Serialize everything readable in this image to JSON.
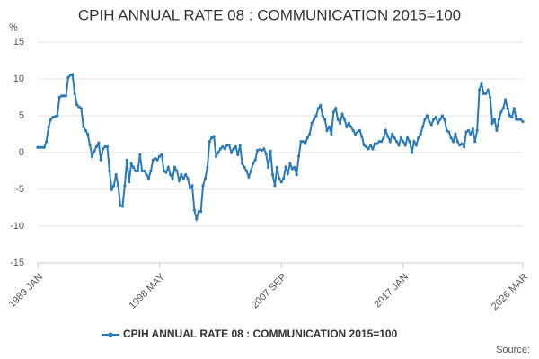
{
  "chart_data": {
    "type": "line",
    "title": "CPIH ANNUAL RATE 08 : COMMUNICATION 2015=100",
    "y_label": "%",
    "source": "Source:",
    "categories": [
      "1989 JAN",
      null,
      null,
      null,
      null,
      null,
      null,
      null,
      null,
      null,
      null,
      null,
      null,
      null,
      null,
      null,
      null,
      null,
      null,
      null,
      null,
      null,
      null,
      null,
      null,
      null,
      null,
      null,
      null,
      null,
      null,
      null,
      null,
      null,
      null,
      null,
      null,
      null,
      null,
      null,
      null,
      null,
      null,
      null,
      null,
      null,
      null,
      null,
      null,
      null,
      null,
      null,
      null,
      null,
      null,
      null,
      "1998 MAY",
      null,
      null,
      null,
      null,
      null,
      null,
      null,
      null,
      null,
      null,
      null,
      null,
      null,
      null,
      null,
      null,
      null,
      null,
      null,
      null,
      null,
      null,
      null,
      null,
      null,
      null,
      null,
      null,
      null,
      null,
      null,
      null,
      null,
      null,
      null,
      null,
      null,
      null,
      null,
      null,
      null,
      null,
      null,
      null,
      null,
      null,
      null,
      null,
      null,
      null,
      null,
      null,
      null,
      null,
      null,
      "2007 SEP",
      null,
      null,
      null,
      null,
      null,
      null,
      null,
      null,
      null,
      null,
      null,
      null,
      null,
      null,
      null,
      null,
      null,
      null,
      null,
      null,
      null,
      null,
      null,
      null,
      null,
      null,
      null,
      null,
      null,
      null,
      null,
      null,
      null,
      null,
      null,
      null,
      null,
      null,
      null,
      null,
      null,
      null,
      null,
      null,
      null,
      null,
      null,
      null,
      null,
      null,
      null,
      null,
      null,
      null,
      null,
      "2017 JAN",
      null,
      null,
      null,
      null,
      null,
      null,
      null,
      null,
      null,
      null,
      null,
      null,
      null,
      null,
      null,
      null,
      null,
      null,
      null,
      null,
      null,
      null,
      null,
      null,
      null,
      null,
      null,
      null,
      null,
      null,
      null,
      null,
      null,
      null,
      null,
      null,
      null,
      null,
      null,
      null,
      null,
      null,
      null,
      null,
      null,
      null,
      null,
      null,
      null,
      null,
      null,
      null,
      null,
      null,
      "2026 MAR"
    ],
    "series": [
      {
        "name": "CPIH ANNUAL RATE 08 : COMMUNICATION 2015=100",
        "color": "#2a7ab9",
        "values": [
          0.7,
          0.7,
          0.7,
          0.7,
          1.5,
          3.5,
          4.5,
          4.8,
          4.9,
          5.0,
          7.5,
          7.7,
          7.7,
          7.7,
          10.2,
          10.5,
          10.6,
          8.0,
          6.5,
          6.2,
          6.0,
          3.5,
          3.0,
          2.5,
          1.0,
          -0.5,
          0.2,
          0.8,
          1.3,
          -1.0,
          0.5,
          0.8,
          0.8,
          -2.5,
          -5.0,
          -4.5,
          -3.0,
          -4.5,
          -7.2,
          -7.3,
          -4.5,
          -1.0,
          -4.0,
          -1.5,
          -2.0,
          -2.5,
          -2.5,
          -0.3,
          -2.5,
          -2.5,
          -3.0,
          -3.5,
          -2.5,
          -1.0,
          -0.8,
          -1.0,
          -0.5,
          -0.3,
          -2.5,
          -2.7,
          -2.0,
          -3.0,
          -3.5,
          -2.0,
          -2.5,
          -3.8,
          -3.0,
          -3.5,
          -3.0,
          -3.5,
          -4.8,
          -4.5,
          -7.8,
          -9.0,
          -8.0,
          -8.0,
          -4.5,
          -3.5,
          -2.0,
          1.5,
          2.0,
          2.2,
          -0.5,
          0.0,
          0.5,
          0.8,
          0.5,
          1.0,
          1.0,
          0.0,
          0.5,
          0.8,
          -0.3,
          1.0,
          -1.5,
          -2.0,
          -2.5,
          -3.3,
          -2.5,
          -1.5,
          -1.0,
          0.3,
          0.4,
          0.3,
          0.5,
          -0.2,
          -2.0,
          0.2,
          -3.0,
          -4.5,
          -2.0,
          -3.5,
          -4.0,
          -3.5,
          -2.0,
          -2.8,
          -1.5,
          -2.2,
          -2.0,
          -3.0,
          -0.5,
          1.5,
          1.5,
          1.2,
          2.0,
          2.5,
          4.0,
          4.5,
          5.0,
          6.0,
          6.4,
          5.0,
          4.5,
          3.0,
          3.5,
          2.5,
          5.5,
          6.0,
          4.5,
          4.0,
          5.2,
          4.5,
          3.5,
          4.0,
          3.5,
          3.0,
          2.5,
          2.8,
          3.0,
          2.2,
          1.0,
          0.8,
          0.5,
          1.0,
          0.5,
          1.2,
          1.2,
          1.5,
          1.5,
          2.0,
          3.0,
          2.2,
          1.5,
          2.5,
          2.0,
          1.5,
          1.0,
          2.0,
          1.5,
          1.0,
          2.0,
          1.5,
          0.0,
          1.5,
          1.0,
          2.0,
          2.5,
          3.5,
          4.5,
          5.0,
          4.2,
          3.8,
          4.5,
          4.8,
          4.0,
          4.5,
          5.0,
          4.5,
          3.0,
          2.8,
          2.0,
          1.5,
          2.5,
          1.5,
          1.0,
          1.2,
          0.8,
          2.8,
          3.0,
          2.5,
          3.2,
          1.5,
          3.0,
          8.5,
          9.4,
          8.0,
          8.0,
          8.5,
          7.5,
          4.0,
          4.5,
          3.0,
          4.5,
          5.5,
          6.0,
          7.2,
          6.0,
          5.0,
          4.8,
          6.0,
          4.5,
          4.5,
          4.5,
          4.2
        ]
      }
    ],
    "ylim": [
      -15,
      15
    ],
    "yticks": [
      -15,
      -10,
      -5,
      0,
      5,
      10,
      15
    ],
    "grid": true
  }
}
